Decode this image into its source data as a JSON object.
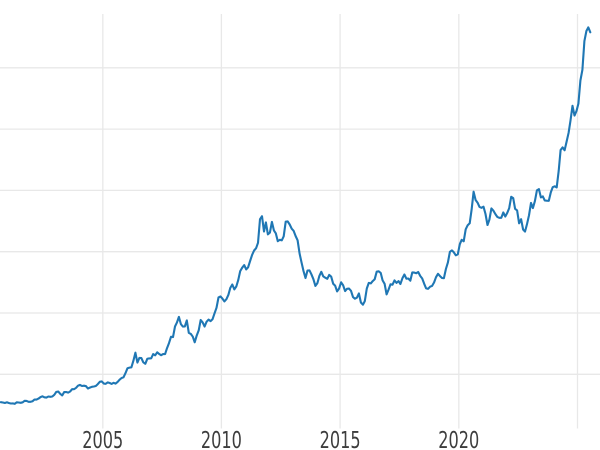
{
  "chart_data": {
    "type": "line",
    "title": "",
    "xlabel": "",
    "ylabel": "",
    "grid": true,
    "legend": false,
    "xlim": [
      2000.67,
      2025.95
    ],
    "ylim": [
      103,
      3439
    ],
    "x_ticks": [
      {
        "year": 2005,
        "label": "2005"
      },
      {
        "year": 2010,
        "label": "2010"
      },
      {
        "year": 2015,
        "label": "2015"
      },
      {
        "year": 2020,
        "label": "2020"
      },
      {
        "year": 2025,
        "label": ""
      }
    ],
    "y_gridline_values": [
      500,
      1000,
      1500,
      2000,
      2500,
      3000
    ],
    "series": [
      {
        "name": "series1",
        "color": "#1f77b4",
        "x_start": 2000.7083,
        "x_step": 0.0833333,
        "values": [
          273,
          270,
          266,
          272,
          266,
          262,
          263,
          260,
          272,
          270,
          268,
          272,
          284,
          283,
          276,
          276,
          281,
          295,
          294,
          302,
          314,
          321,
          313,
          310,
          319,
          317,
          319,
          333,
          357,
          359,
          341,
          328,
          355,
          356,
          351,
          360,
          379,
          379,
          390,
          407,
          414,
          405,
          407,
          403,
          384,
          392,
          398,
          401,
          405,
          420,
          439,
          442,
          424,
          423,
          434,
          429,
          422,
          431,
          424,
          438,
          456,
          470,
          476,
          510,
          550,
          555,
          557,
          611,
          676,
          596,
          634,
          633,
          598,
          586,
          627,
          630,
          631,
          665,
          655,
          680,
          667,
          656,
          665,
          665,
          713,
          755,
          806,
          804,
          890,
          922,
          968,
          910,
          889,
          890,
          940,
          839,
          830,
          807,
          761,
          816,
          858,
          943,
          924,
          890,
          929,
          946,
          934,
          949,
          997,
          1043,
          1127,
          1135,
          1118,
          1095,
          1113,
          1149,
          1205,
          1233,
          1193,
          1216,
          1271,
          1342,
          1370,
          1391,
          1356,
          1373,
          1424,
          1474,
          1510,
          1529,
          1573,
          1765,
          1790,
          1665,
          1739,
          1641,
          1656,
          1743,
          1674,
          1650,
          1586,
          1597,
          1593,
          1626,
          1745,
          1747,
          1722,
          1688,
          1671,
          1628,
          1593,
          1485,
          1414,
          1343,
          1286,
          1347,
          1348,
          1316,
          1276,
          1221,
          1244,
          1301,
          1336,
          1299,
          1288,
          1279,
          1311,
          1296,
          1238,
          1222,
          1176,
          1200,
          1251,
          1227,
          1179,
          1198,
          1199,
          1181,
          1130,
          1117,
          1125,
          1159,
          1086,
          1068,
          1097,
          1200,
          1246,
          1242,
          1260,
          1276,
          1337,
          1340,
          1327,
          1266,
          1238,
          1152,
          1192,
          1234,
          1231,
          1266,
          1246,
          1260,
          1237,
          1283,
          1314,
          1280,
          1282,
          1264,
          1331,
          1330,
          1325,
          1335,
          1303,
          1282,
          1238,
          1201,
          1198,
          1215,
          1221,
          1250,
          1292,
          1320,
          1301,
          1286,
          1284,
          1359,
          1413,
          1499,
          1511,
          1495,
          1471,
          1479,
          1561,
          1597,
          1585,
          1683,
          1716,
          1732,
          1843,
          1990,
          1922,
          1900,
          1866,
          1858,
          1867,
          1808,
          1718,
          1762,
          1853,
          1835,
          1807,
          1784,
          1777,
          1777,
          1820,
          1787,
          1816,
          1856,
          1948,
          1937,
          1850,
          1837,
          1732,
          1765,
          1681,
          1664,
          1725,
          1797,
          1898,
          1856,
          1913,
          2000,
          2011,
          1943,
          1951,
          1918,
          1916,
          1915,
          1984,
          2026,
          2034,
          2025,
          2160,
          2330,
          2351,
          2327,
          2398,
          2470,
          2570,
          2690,
          2610,
          2648,
          2708,
          2897,
          2984,
          3218,
          3300,
          3330,
          3290
        ]
      }
    ]
  },
  "style": {
    "background": "#ffffff",
    "grid_color": "#e8e8e8",
    "tick_label_color": "#3d3d3d",
    "line_color": "#1f77b4",
    "tick_label_font_px": 23
  }
}
